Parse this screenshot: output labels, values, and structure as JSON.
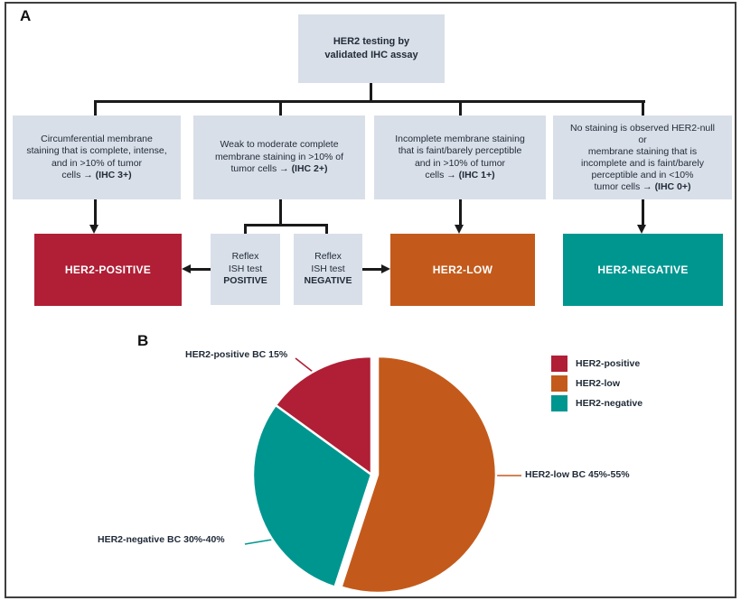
{
  "panel_a": {
    "label": "A",
    "root_box": "HER2 testing by\nvalidated IHC assay",
    "criteria": [
      {
        "text": "Circumferential membrane\nstaining that is complete, intense,\nand in >10% of tumor\ncells → ",
        "bold": "(IHC 3+)"
      },
      {
        "text": "Weak to moderate complete\nmembrane staining in >10% of\ntumor cells → ",
        "bold": "(IHC 2+)"
      },
      {
        "text": "Incomplete membrane staining\nthat is faint/barely perceptible\nand in >10% of tumor\ncells → ",
        "bold": "(IHC 1+)"
      },
      {
        "text": "No staining is observed HER2-null\nor\nmembrane staining that is\nincomplete and is faint/barely\nperceptible and in <10%\ntumor cells → ",
        "bold": "(IHC 0+)"
      }
    ],
    "reflex_boxes": [
      {
        "text": "Reflex\nISH test\n",
        "bold": "POSITIVE"
      },
      {
        "text": "Reflex\nISH test\n",
        "bold": "NEGATIVE"
      }
    ],
    "outcomes": [
      {
        "label": "HER2-POSITIVE",
        "color": "#b01f35"
      },
      {
        "label": "HER2-LOW",
        "color": "#c35a1b"
      },
      {
        "label": "HER2-NEGATIVE",
        "color": "#009690"
      }
    ]
  },
  "panel_b": {
    "label": "B"
  },
  "chart_data": {
    "type": "pie",
    "slices": [
      {
        "name": "HER2-positive",
        "callout": "HER2-positive BC 15%",
        "value_pct": 15,
        "range_pct": "15%",
        "start_deg": 306,
        "end_deg": 360,
        "color": "#b01f35",
        "exploded": false
      },
      {
        "name": "HER2-low",
        "callout": "HER2-low BC 45%-55%",
        "value_pct": 55,
        "range_pct": "45%-55%",
        "start_deg": 0,
        "end_deg": 198,
        "color": "#c35a1b",
        "exploded": true
      },
      {
        "name": "HER2-negative",
        "callout": "HER2-negative BC 30%-40%",
        "value_pct": 30,
        "range_pct": "30%-40%",
        "start_deg": 198,
        "end_deg": 306,
        "color": "#009690",
        "exploded": false
      }
    ],
    "legend_position": "right"
  }
}
